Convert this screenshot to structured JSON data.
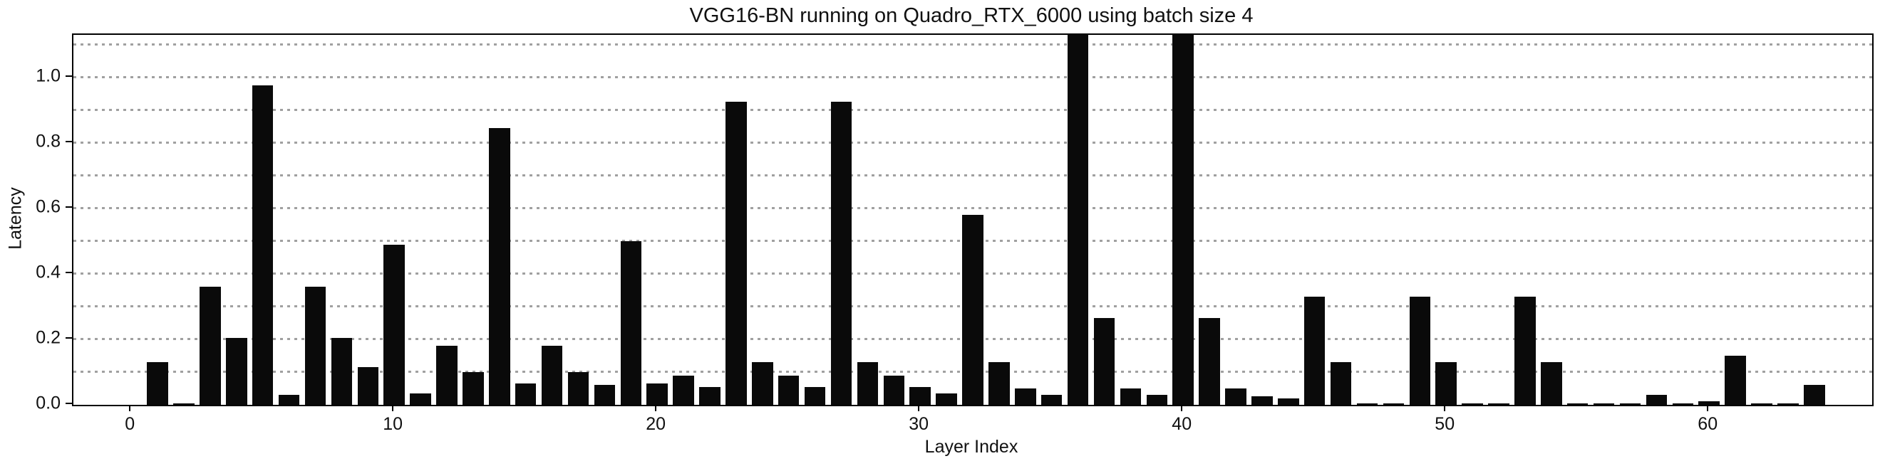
{
  "chart_data": {
    "type": "bar",
    "title": "VGG16-BN running on Quadro_RTX_6000 using batch size 4",
    "xlabel": "Layer Index",
    "ylabel": "Latency",
    "bar_color": "#0a0a0a",
    "grid_color": "#a0a0a0",
    "grid_style": "dotted",
    "legend": "none",
    "xlim": [
      -2.2,
      66.2
    ],
    "ylim": [
      0,
      1.13
    ],
    "bar_width_units": 0.8,
    "clipped_bars_x": [
      36,
      40
    ],
    "x": [
      1,
      2,
      3,
      4,
      5,
      6,
      7,
      8,
      9,
      10,
      11,
      12,
      13,
      14,
      15,
      16,
      17,
      18,
      19,
      20,
      21,
      22,
      23,
      24,
      25,
      26,
      27,
      28,
      29,
      30,
      31,
      32,
      33,
      34,
      35,
      36,
      37,
      38,
      39,
      40,
      41,
      42,
      43,
      44,
      45,
      46,
      47,
      48,
      49,
      50,
      51,
      52,
      53,
      54,
      55,
      56,
      57,
      58,
      59,
      60,
      61,
      62,
      63,
      64
    ],
    "values": [
      0.13,
      0.005,
      0.36,
      0.205,
      0.975,
      0.03,
      0.36,
      0.205,
      0.115,
      0.49,
      0.035,
      0.18,
      0.1,
      0.845,
      0.065,
      0.18,
      0.1,
      0.06,
      0.5,
      0.065,
      0.09,
      0.055,
      0.925,
      0.13,
      0.09,
      0.055,
      0.925,
      0.13,
      0.09,
      0.055,
      0.035,
      0.58,
      0.13,
      0.05,
      0.03,
      1.13,
      0.265,
      0.05,
      0.03,
      1.13,
      0.265,
      0.05,
      0.025,
      0.02,
      0.33,
      0.13,
      0.005,
      0.005,
      0.33,
      0.13,
      0.005,
      0.005,
      0.33,
      0.13,
      0.005,
      0.005,
      0.005,
      0.03,
      0.005,
      0.01,
      0.15,
      0.005,
      0.005,
      0.06
    ],
    "gridlines": [
      0.1,
      0.2,
      0.3,
      0.4,
      0.5,
      0.6,
      0.7,
      0.8,
      0.9,
      1.0,
      1.1
    ],
    "yticks": [
      {
        "value": 0.0,
        "label": "0.0"
      },
      {
        "value": 0.2,
        "label": "0.2"
      },
      {
        "value": 0.4,
        "label": "0.4"
      },
      {
        "value": 0.6,
        "label": "0.6"
      },
      {
        "value": 0.8,
        "label": "0.8"
      },
      {
        "value": 1.0,
        "label": "1.0"
      }
    ],
    "xticks": [
      {
        "value": 0,
        "label": "0"
      },
      {
        "value": 10,
        "label": "10"
      },
      {
        "value": 20,
        "label": "20"
      },
      {
        "value": 30,
        "label": "30"
      },
      {
        "value": 40,
        "label": "40"
      },
      {
        "value": 50,
        "label": "50"
      },
      {
        "value": 60,
        "label": "60"
      }
    ]
  }
}
